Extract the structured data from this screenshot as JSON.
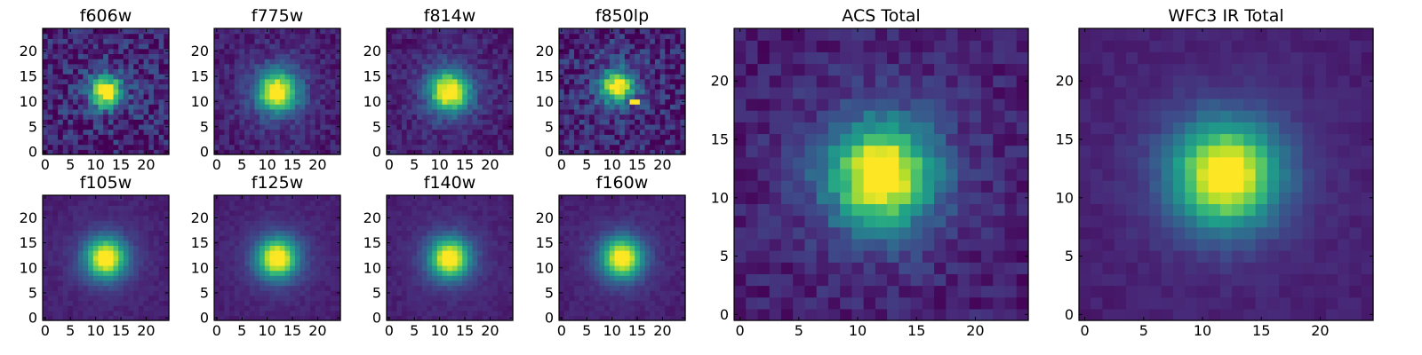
{
  "chart_data": [
    {
      "type": "heatmap",
      "title": "f606w",
      "colormap": "viridis",
      "grid": false,
      "xlim": [
        0,
        25
      ],
      "ylim": [
        0,
        25
      ],
      "xticks": [
        "0",
        "5",
        "10",
        "15",
        "20"
      ],
      "yticks": [
        "0",
        "5",
        "10",
        "15",
        "20"
      ],
      "source_peak": [
        12,
        12
      ],
      "noise": "high",
      "hot_pixels": []
    },
    {
      "type": "heatmap",
      "title": "f775w",
      "colormap": "viridis",
      "grid": false,
      "xlim": [
        0,
        25
      ],
      "ylim": [
        0,
        25
      ],
      "xticks": [
        "0",
        "5",
        "10",
        "15",
        "20"
      ],
      "yticks": [
        "0",
        "5",
        "10",
        "15",
        "20"
      ],
      "source_peak": [
        12,
        12
      ],
      "noise": "medium",
      "hot_pixels": []
    },
    {
      "type": "heatmap",
      "title": "f814w",
      "colormap": "viridis",
      "grid": false,
      "xlim": [
        0,
        25
      ],
      "ylim": [
        0,
        25
      ],
      "xticks": [
        "0",
        "5",
        "10",
        "15",
        "20"
      ],
      "yticks": [
        "0",
        "5",
        "10",
        "15",
        "20"
      ],
      "source_peak": [
        12,
        12
      ],
      "noise": "medium",
      "hot_pixels": []
    },
    {
      "type": "heatmap",
      "title": "f850lp",
      "colormap": "viridis",
      "grid": false,
      "xlim": [
        0,
        25
      ],
      "ylim": [
        0,
        25
      ],
      "xticks": [
        "0",
        "5",
        "10",
        "15",
        "20"
      ],
      "yticks": [
        "0",
        "5",
        "10",
        "15",
        "20"
      ],
      "source_peak": [
        11,
        13
      ],
      "noise": "high",
      "hot_pixels": [
        [
          14,
          10
        ],
        [
          15,
          10
        ]
      ]
    },
    {
      "type": "heatmap",
      "title": "f105w",
      "colormap": "viridis",
      "grid": false,
      "xlim": [
        0,
        25
      ],
      "ylim": [
        0,
        25
      ],
      "xticks": [
        "0",
        "5",
        "10",
        "15",
        "20"
      ],
      "yticks": [
        "0",
        "5",
        "10",
        "15",
        "20"
      ],
      "source_peak": [
        12,
        12
      ],
      "noise": "low",
      "hot_pixels": []
    },
    {
      "type": "heatmap",
      "title": "f125w",
      "colormap": "viridis",
      "grid": false,
      "xlim": [
        0,
        25
      ],
      "ylim": [
        0,
        25
      ],
      "xticks": [
        "0",
        "5",
        "10",
        "15",
        "20"
      ],
      "yticks": [
        "0",
        "5",
        "10",
        "15",
        "20"
      ],
      "source_peak": [
        12,
        12
      ],
      "noise": "low",
      "hot_pixels": []
    },
    {
      "type": "heatmap",
      "title": "f140w",
      "colormap": "viridis",
      "grid": false,
      "xlim": [
        0,
        25
      ],
      "ylim": [
        0,
        25
      ],
      "xticks": [
        "0",
        "5",
        "10",
        "15",
        "20"
      ],
      "yticks": [
        "0",
        "5",
        "10",
        "15",
        "20"
      ],
      "source_peak": [
        12,
        12
      ],
      "noise": "low",
      "hot_pixels": []
    },
    {
      "type": "heatmap",
      "title": "f160w",
      "colormap": "viridis",
      "grid": false,
      "xlim": [
        0,
        25
      ],
      "ylim": [
        0,
        25
      ],
      "xticks": [
        "0",
        "5",
        "10",
        "15",
        "20"
      ],
      "yticks": [
        "0",
        "5",
        "10",
        "15",
        "20"
      ],
      "source_peak": [
        12,
        12
      ],
      "noise": "low",
      "hot_pixels": []
    },
    {
      "type": "heatmap",
      "title": "ACS Total",
      "colormap": "viridis",
      "grid": false,
      "xlim": [
        0,
        25
      ],
      "ylim": [
        0,
        25
      ],
      "xticks": [
        "0",
        "5",
        "10",
        "15",
        "20"
      ],
      "yticks": [
        "0",
        "5",
        "10",
        "15",
        "20"
      ],
      "source_peak": [
        12,
        12
      ],
      "noise": "medium",
      "hot_pixels": []
    },
    {
      "type": "heatmap",
      "title": "WFC3 IR Total",
      "colormap": "viridis",
      "grid": false,
      "xlim": [
        0,
        25
      ],
      "ylim": [
        0,
        25
      ],
      "xticks": [
        "0",
        "5",
        "10",
        "15",
        "20"
      ],
      "yticks": [
        "0",
        "5",
        "10",
        "15",
        "20"
      ],
      "source_peak": [
        12,
        12
      ],
      "noise": "low",
      "hot_pixels": []
    }
  ]
}
